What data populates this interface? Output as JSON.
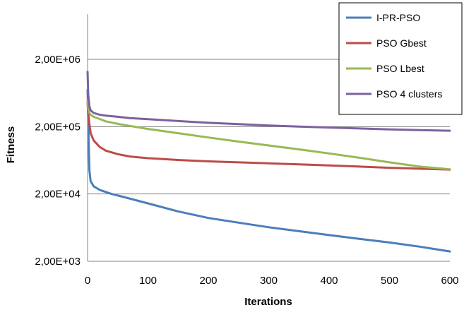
{
  "chart_data": {
    "type": "line",
    "title": "",
    "xlabel": "Iterations",
    "ylabel": "Fitness",
    "xlim": [
      0,
      600
    ],
    "ylim": [
      2000,
      2000000
    ],
    "y_scale": "log",
    "x_ticks": [
      0,
      100,
      200,
      300,
      400,
      500,
      600
    ],
    "x_tick_labels": [
      "0",
      "100",
      "200",
      "300",
      "400",
      "500",
      "600"
    ],
    "y_ticks": [
      2000,
      20000,
      200000,
      2000000
    ],
    "y_tick_labels": [
      "2,00E+03",
      "2,00E+04",
      "2,00E+05",
      "2,00E+06"
    ],
    "grid": "horizontal",
    "legend_position": "top-right",
    "series": [
      {
        "name": "I-PR-PSO",
        "color": "#4a7ebb",
        "x": [
          0,
          1,
          2,
          3,
          5,
          10,
          20,
          40,
          60,
          100,
          150,
          200,
          250,
          300,
          350,
          400,
          450,
          500,
          550,
          600
        ],
        "y": [
          700000,
          280000,
          100000,
          45000,
          31000,
          26000,
          23000,
          20000,
          18000,
          14500,
          11000,
          8800,
          7500,
          6400,
          5600,
          4900,
          4300,
          3800,
          3300,
          2800
        ]
      },
      {
        "name": "PSO Gbest",
        "color": "#be4b48",
        "x": [
          0,
          1,
          3,
          5,
          10,
          20,
          30,
          50,
          70,
          100,
          150,
          200,
          250,
          300,
          350,
          400,
          450,
          500,
          550,
          600
        ],
        "y": [
          450000,
          320000,
          220000,
          160000,
          125000,
          100000,
          88000,
          78000,
          72000,
          68000,
          64000,
          61000,
          59000,
          57000,
          55000,
          53000,
          51000,
          49000,
          47500,
          46000
        ]
      },
      {
        "name": "PSO Lbest",
        "color": "#98b954",
        "x": [
          0,
          1,
          3,
          5,
          10,
          20,
          30,
          50,
          70,
          100,
          150,
          200,
          250,
          300,
          350,
          400,
          450,
          500,
          550,
          600
        ],
        "y": [
          480000,
          380000,
          320000,
          300000,
          280000,
          260000,
          240000,
          220000,
          205000,
          185000,
          160000,
          138000,
          120000,
          105000,
          92000,
          80000,
          69000,
          59000,
          51000,
          46500
        ]
      },
      {
        "name": "PSO 4 clusters",
        "color": "#7d60a0",
        "x": [
          0,
          1,
          3,
          5,
          10,
          20,
          30,
          50,
          70,
          100,
          150,
          200,
          250,
          300,
          350,
          400,
          450,
          500,
          550,
          600
        ],
        "y": [
          1300000,
          600000,
          400000,
          350000,
          320000,
          300000,
          292000,
          280000,
          268000,
          258000,
          242000,
          228000,
          218000,
          208000,
          200000,
          194000,
          188000,
          182000,
          178000,
          174000
        ]
      }
    ]
  }
}
